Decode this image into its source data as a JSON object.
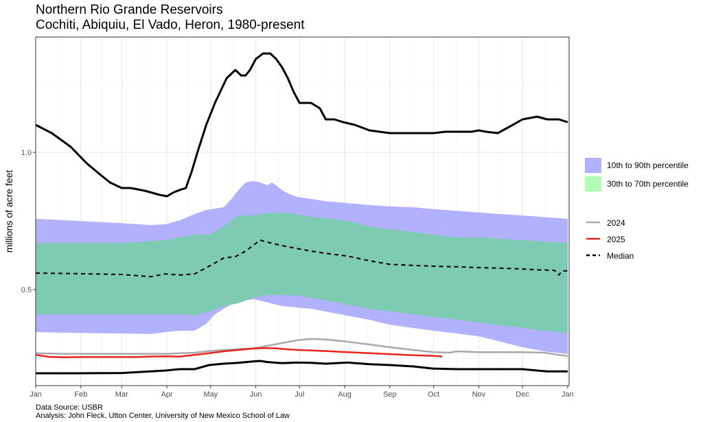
{
  "chart_data": {
    "type": "area",
    "title": "Northern Rio Grande Reservoirs",
    "subtitle": "Cochiti, Abiquiu, El Vado, Heron, 1980-present",
    "ylabel": "millions of acre feet",
    "xlabel": "",
    "x_tick_labels": [
      "Jan",
      "Feb",
      "Mar",
      "Apr",
      "May",
      "Jun",
      "Jul",
      "Aug",
      "Sep",
      "Oct",
      "Nov",
      "Dec",
      "Jan"
    ],
    "x_tick_days": [
      1,
      32,
      60,
      91,
      121,
      152,
      182,
      213,
      244,
      274,
      305,
      335,
      366
    ],
    "y_ticks": [
      0.5,
      1.0
    ],
    "y_tick_labels": [
      "0.5",
      "1.0"
    ],
    "xlim": [
      1,
      367
    ],
    "ylim": [
      0.15,
      1.42
    ],
    "grid": true,
    "legend_position": "right",
    "legend": {
      "fill": [
        {
          "label": "10th to 90th percentile",
          "color": "#b1b1fe"
        },
        {
          "label": "30th to 70th percentile",
          "color": "#b3fcb3"
        }
      ],
      "lines": [
        {
          "label": "2024",
          "color": "#a9a9a9",
          "dash": "solid"
        },
        {
          "label": "2025",
          "color": "#e8231b",
          "dash": "solid"
        },
        {
          "label": "Median",
          "color": "#000000",
          "dash": "dashed"
        }
      ]
    },
    "colors": {
      "band_10_90": "#b1b1fe",
      "band_30_70": "#7fcab3",
      "max_min": "#000000",
      "median": "#000000",
      "y2024": "#a9a9a9",
      "y2025": "#e8231b",
      "grid": "#e6e6e6",
      "axis": "#333333"
    },
    "series": [
      {
        "name": "",
        "role": "max",
        "x": [
          1,
          12,
          25,
          36,
          45,
          52,
          60,
          66,
          76,
          86,
          91,
          96,
          101,
          104,
          108,
          112,
          118,
          124,
          132,
          138,
          142,
          145,
          148,
          152,
          157,
          162,
          166,
          170,
          174,
          178,
          182,
          190,
          196,
          200,
          206,
          212,
          220,
          230,
          244,
          255,
          262,
          270,
          274,
          282,
          290,
          300,
          305,
          310,
          318,
          325,
          335,
          345,
          352,
          360,
          366
        ],
        "y": [
          1.1,
          1.07,
          1.02,
          0.96,
          0.92,
          0.89,
          0.87,
          0.87,
          0.86,
          0.845,
          0.84,
          0.855,
          0.865,
          0.87,
          0.93,
          1.0,
          1.1,
          1.18,
          1.27,
          1.3,
          1.28,
          1.28,
          1.3,
          1.34,
          1.36,
          1.36,
          1.34,
          1.31,
          1.27,
          1.22,
          1.18,
          1.18,
          1.16,
          1.12,
          1.12,
          1.11,
          1.1,
          1.08,
          1.07,
          1.07,
          1.07,
          1.07,
          1.07,
          1.075,
          1.075,
          1.075,
          1.08,
          1.075,
          1.07,
          1.09,
          1.12,
          1.13,
          1.12,
          1.12,
          1.11
        ]
      },
      {
        "name": "",
        "role": "min",
        "x": [
          1,
          30,
          60,
          90,
          100,
          110,
          120,
          130,
          140,
          150,
          155,
          160,
          170,
          180,
          190,
          200,
          215,
          230,
          244,
          260,
          274,
          290,
          305,
          320,
          335,
          345,
          352,
          360,
          366
        ],
        "y": [
          0.195,
          0.195,
          0.196,
          0.205,
          0.21,
          0.21,
          0.225,
          0.23,
          0.233,
          0.238,
          0.24,
          0.236,
          0.232,
          0.234,
          0.233,
          0.23,
          0.234,
          0.228,
          0.225,
          0.22,
          0.212,
          0.21,
          0.21,
          0.21,
          0.21,
          0.205,
          0.202,
          0.202,
          0.202
        ]
      },
      {
        "name": "",
        "role": "p10",
        "x": [
          1,
          30,
          60,
          80,
          90,
          100,
          110,
          118,
          124,
          130,
          135,
          140,
          145,
          150,
          155,
          160,
          166,
          170,
          174,
          180,
          190,
          200,
          215,
          230,
          244,
          260,
          274,
          290,
          305,
          320,
          335,
          350,
          366
        ],
        "y": [
          0.345,
          0.342,
          0.34,
          0.338,
          0.345,
          0.35,
          0.35,
          0.375,
          0.41,
          0.43,
          0.445,
          0.455,
          0.46,
          0.465,
          0.46,
          0.453,
          0.445,
          0.44,
          0.438,
          0.435,
          0.43,
          0.42,
          0.405,
          0.39,
          0.372,
          0.36,
          0.35,
          0.34,
          0.33,
          0.31,
          0.29,
          0.275,
          0.265
        ]
      },
      {
        "name": "",
        "role": "p30",
        "x": [
          1,
          30,
          60,
          90,
          100,
          110,
          120,
          130,
          140,
          150,
          160,
          170,
          180,
          190,
          200,
          215,
          230,
          244,
          260,
          274,
          290,
          305,
          320,
          335,
          350,
          366
        ],
        "y": [
          0.41,
          0.41,
          0.41,
          0.41,
          0.41,
          0.405,
          0.42,
          0.44,
          0.45,
          0.47,
          0.48,
          0.48,
          0.478,
          0.47,
          0.46,
          0.445,
          0.43,
          0.42,
          0.41,
          0.4,
          0.39,
          0.38,
          0.37,
          0.36,
          0.35,
          0.342
        ]
      },
      {
        "name": "",
        "role": "p70",
        "x": [
          1,
          30,
          60,
          90,
          100,
          110,
          120,
          130,
          140,
          150,
          160,
          170,
          180,
          190,
          200,
          215,
          230,
          244,
          260,
          274,
          290,
          305,
          320,
          335,
          350,
          366
        ],
        "y": [
          0.67,
          0.67,
          0.67,
          0.68,
          0.69,
          0.7,
          0.7,
          0.73,
          0.77,
          0.77,
          0.78,
          0.78,
          0.775,
          0.765,
          0.76,
          0.75,
          0.73,
          0.72,
          0.71,
          0.7,
          0.69,
          0.69,
          0.685,
          0.68,
          0.675,
          0.67
        ]
      },
      {
        "name": "",
        "role": "p90",
        "x": [
          1,
          30,
          60,
          80,
          90,
          100,
          110,
          118,
          124,
          130,
          135,
          140,
          145,
          150,
          155,
          160,
          163,
          166,
          170,
          175,
          180,
          190,
          200,
          215,
          230,
          244,
          260,
          274,
          290,
          305,
          320,
          335,
          350,
          366
        ],
        "y": [
          0.758,
          0.75,
          0.742,
          0.735,
          0.738,
          0.752,
          0.775,
          0.79,
          0.795,
          0.8,
          0.828,
          0.862,
          0.89,
          0.895,
          0.89,
          0.88,
          0.89,
          0.88,
          0.862,
          0.848,
          0.838,
          0.83,
          0.822,
          0.815,
          0.808,
          0.803,
          0.8,
          0.793,
          0.787,
          0.781,
          0.775,
          0.77,
          0.764,
          0.758
        ]
      },
      {
        "name": "Median",
        "role": "median",
        "x": [
          1,
          30,
          60,
          80,
          90,
          100,
          110,
          120,
          125,
          130,
          138,
          145,
          150,
          155,
          160,
          166,
          172,
          180,
          190,
          200,
          215,
          230,
          244,
          260,
          274,
          290,
          305,
          320,
          335,
          345,
          357,
          360,
          362,
          366
        ],
        "y": [
          0.56,
          0.558,
          0.555,
          0.547,
          0.557,
          0.553,
          0.557,
          0.585,
          0.6,
          0.615,
          0.62,
          0.64,
          0.66,
          0.68,
          0.673,
          0.665,
          0.658,
          0.65,
          0.64,
          0.632,
          0.622,
          0.605,
          0.592,
          0.588,
          0.585,
          0.583,
          0.58,
          0.578,
          0.575,
          0.572,
          0.57,
          0.553,
          0.568,
          0.568
        ]
      },
      {
        "name": "2024",
        "role": "y2024",
        "x": [
          1,
          20,
          40,
          60,
          80,
          91,
          100,
          110,
          120,
          130,
          140,
          150,
          155,
          160,
          165,
          170,
          175,
          180,
          185,
          190,
          200,
          215,
          230,
          244,
          260,
          274,
          285,
          290,
          305,
          320,
          335,
          350,
          360,
          366
        ],
        "y": [
          0.268,
          0.266,
          0.266,
          0.266,
          0.266,
          0.266,
          0.268,
          0.27,
          0.276,
          0.28,
          0.283,
          0.286,
          0.29,
          0.295,
          0.3,
          0.305,
          0.31,
          0.315,
          0.318,
          0.32,
          0.318,
          0.31,
          0.3,
          0.29,
          0.28,
          0.272,
          0.27,
          0.275,
          0.272,
          0.272,
          0.272,
          0.27,
          0.262,
          0.258
        ]
      },
      {
        "name": "2025",
        "role": "y2025",
        "x": [
          1,
          10,
          20,
          30,
          50,
          70,
          80,
          90,
          100,
          110,
          120,
          130,
          140,
          150,
          160,
          166,
          172,
          180,
          190,
          200,
          215,
          230,
          244,
          255,
          265,
          275,
          280
        ],
        "y": [
          0.262,
          0.255,
          0.253,
          0.254,
          0.254,
          0.254,
          0.256,
          0.257,
          0.256,
          0.262,
          0.268,
          0.275,
          0.28,
          0.285,
          0.287,
          0.286,
          0.283,
          0.28,
          0.278,
          0.276,
          0.272,
          0.268,
          0.265,
          0.262,
          0.26,
          0.258,
          0.256
        ]
      }
    ]
  },
  "footer": {
    "source": "Data Source: USBR",
    "analysis": "Analysis: John Fleck, Utton Center, University of New Mexico School of Law"
  }
}
